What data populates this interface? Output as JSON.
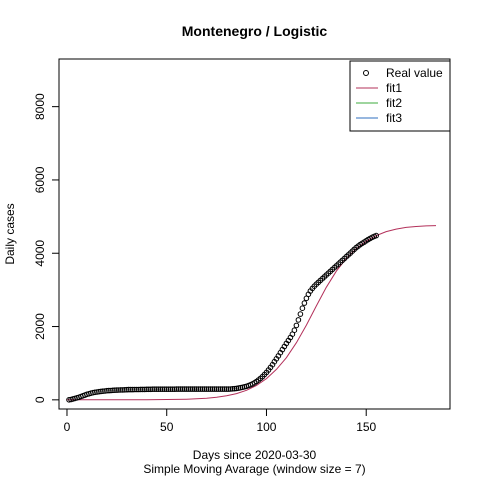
{
  "chart_data": {
    "type": "scatter",
    "title": "Montenegro / Logistic",
    "xlabel": "Days since 2020-03-30",
    "subtitle": "Simple Moving Avarage (window size = 7)",
    "ylabel": "Daily cases",
    "xlim": [
      -4,
      192
    ],
    "ylim": [
      -250,
      9300
    ],
    "xticks": [
      0,
      50,
      100,
      150
    ],
    "yticks": [
      0,
      2000,
      4000,
      6000,
      8000
    ],
    "grid": false,
    "legend": {
      "position": "top-right",
      "entries": [
        {
          "label": "Real value",
          "type": "point",
          "color": "#000000"
        },
        {
          "label": "fit1",
          "type": "line",
          "color": "#b3305a"
        },
        {
          "label": "fit2",
          "type": "line",
          "color": "#3cab3c"
        },
        {
          "label": "fit3",
          "type": "line",
          "color": "#2f6fbf"
        }
      ]
    },
    "series": [
      {
        "name": "Real value",
        "kind": "points",
        "color": "#000000",
        "x": [
          1,
          2,
          3,
          4,
          5,
          6,
          7,
          8,
          9,
          10,
          11,
          12,
          13,
          14,
          15,
          16,
          17,
          18,
          19,
          20,
          21,
          22,
          23,
          24,
          25,
          26,
          27,
          28,
          29,
          30,
          31,
          32,
          33,
          34,
          35,
          36,
          37,
          38,
          39,
          40,
          41,
          42,
          43,
          44,
          45,
          46,
          47,
          48,
          49,
          50,
          51,
          52,
          53,
          54,
          55,
          56,
          57,
          58,
          59,
          60,
          61,
          62,
          63,
          64,
          65,
          66,
          67,
          68,
          69,
          70,
          71,
          72,
          73,
          74,
          75,
          76,
          77,
          78,
          79,
          80,
          81,
          82,
          83,
          84,
          85,
          86,
          87,
          88,
          89,
          90,
          91,
          92,
          93,
          94,
          95,
          96,
          97,
          98,
          99,
          100,
          101,
          102,
          103,
          104,
          105,
          106,
          107,
          108,
          109,
          110,
          111,
          112,
          113,
          114,
          115,
          116,
          117,
          118,
          119,
          120,
          121,
          122,
          123,
          124,
          125,
          126,
          127,
          128,
          129,
          130,
          131,
          132,
          133,
          134,
          135,
          136,
          137,
          138,
          139,
          140,
          141,
          142,
          143,
          144,
          145,
          146,
          147,
          148,
          149,
          150,
          151,
          152,
          153,
          154,
          155
        ],
        "y": [
          0,
          10,
          25,
          40,
          55,
          70,
          90,
          110,
          130,
          150,
          165,
          180,
          195,
          205,
          215,
          222,
          230,
          236,
          242,
          248,
          252,
          256,
          259,
          262,
          265,
          268,
          270,
          272,
          274,
          276,
          278,
          279,
          280,
          281,
          282,
          283,
          284,
          285,
          286,
          287,
          288,
          288,
          289,
          289,
          290,
          290,
          290,
          290,
          291,
          291,
          291,
          291,
          291,
          291,
          292,
          292,
          292,
          292,
          292,
          292,
          292,
          292,
          293,
          293,
          293,
          293,
          293,
          293,
          293,
          293,
          293,
          293,
          293,
          293,
          293,
          293,
          293,
          293,
          293,
          294,
          294,
          296,
          300,
          305,
          312,
          320,
          330,
          342,
          355,
          370,
          388,
          410,
          435,
          465,
          500,
          540,
          585,
          635,
          690,
          750,
          815,
          885,
          960,
          1040,
          1120,
          1200,
          1285,
          1370,
          1455,
          1540,
          1620,
          1700,
          1790,
          1900,
          2030,
          2180,
          2340,
          2500,
          2640,
          2770,
          2880,
          2970,
          3040,
          3100,
          3155,
          3205,
          3255,
          3305,
          3355,
          3405,
          3455,
          3505,
          3555,
          3605,
          3655,
          3705,
          3755,
          3805,
          3855,
          3905,
          3955,
          4005,
          4055,
          4105,
          4155,
          4195,
          4235,
          4270,
          4305,
          4340,
          4375,
          4405,
          4435,
          4460,
          4480
        ]
      },
      {
        "name": "fit1",
        "kind": "line",
        "color": "#b3305a",
        "x": [
          0,
          10,
          20,
          30,
          40,
          50,
          55,
          60,
          65,
          70,
          75,
          80,
          85,
          90,
          95,
          100,
          105,
          110,
          115,
          120,
          125,
          130,
          135,
          140,
          145,
          150,
          155,
          160,
          165,
          170,
          175,
          180,
          185
        ],
        "y": [
          0,
          0,
          0,
          2,
          4,
          8,
          12,
          18,
          28,
          44,
          70,
          110,
          170,
          260,
          390,
          580,
          830,
          1150,
          1560,
          2040,
          2560,
          3070,
          3510,
          3860,
          4120,
          4330,
          4480,
          4590,
          4660,
          4705,
          4730,
          4745,
          4755
        ]
      }
    ]
  }
}
